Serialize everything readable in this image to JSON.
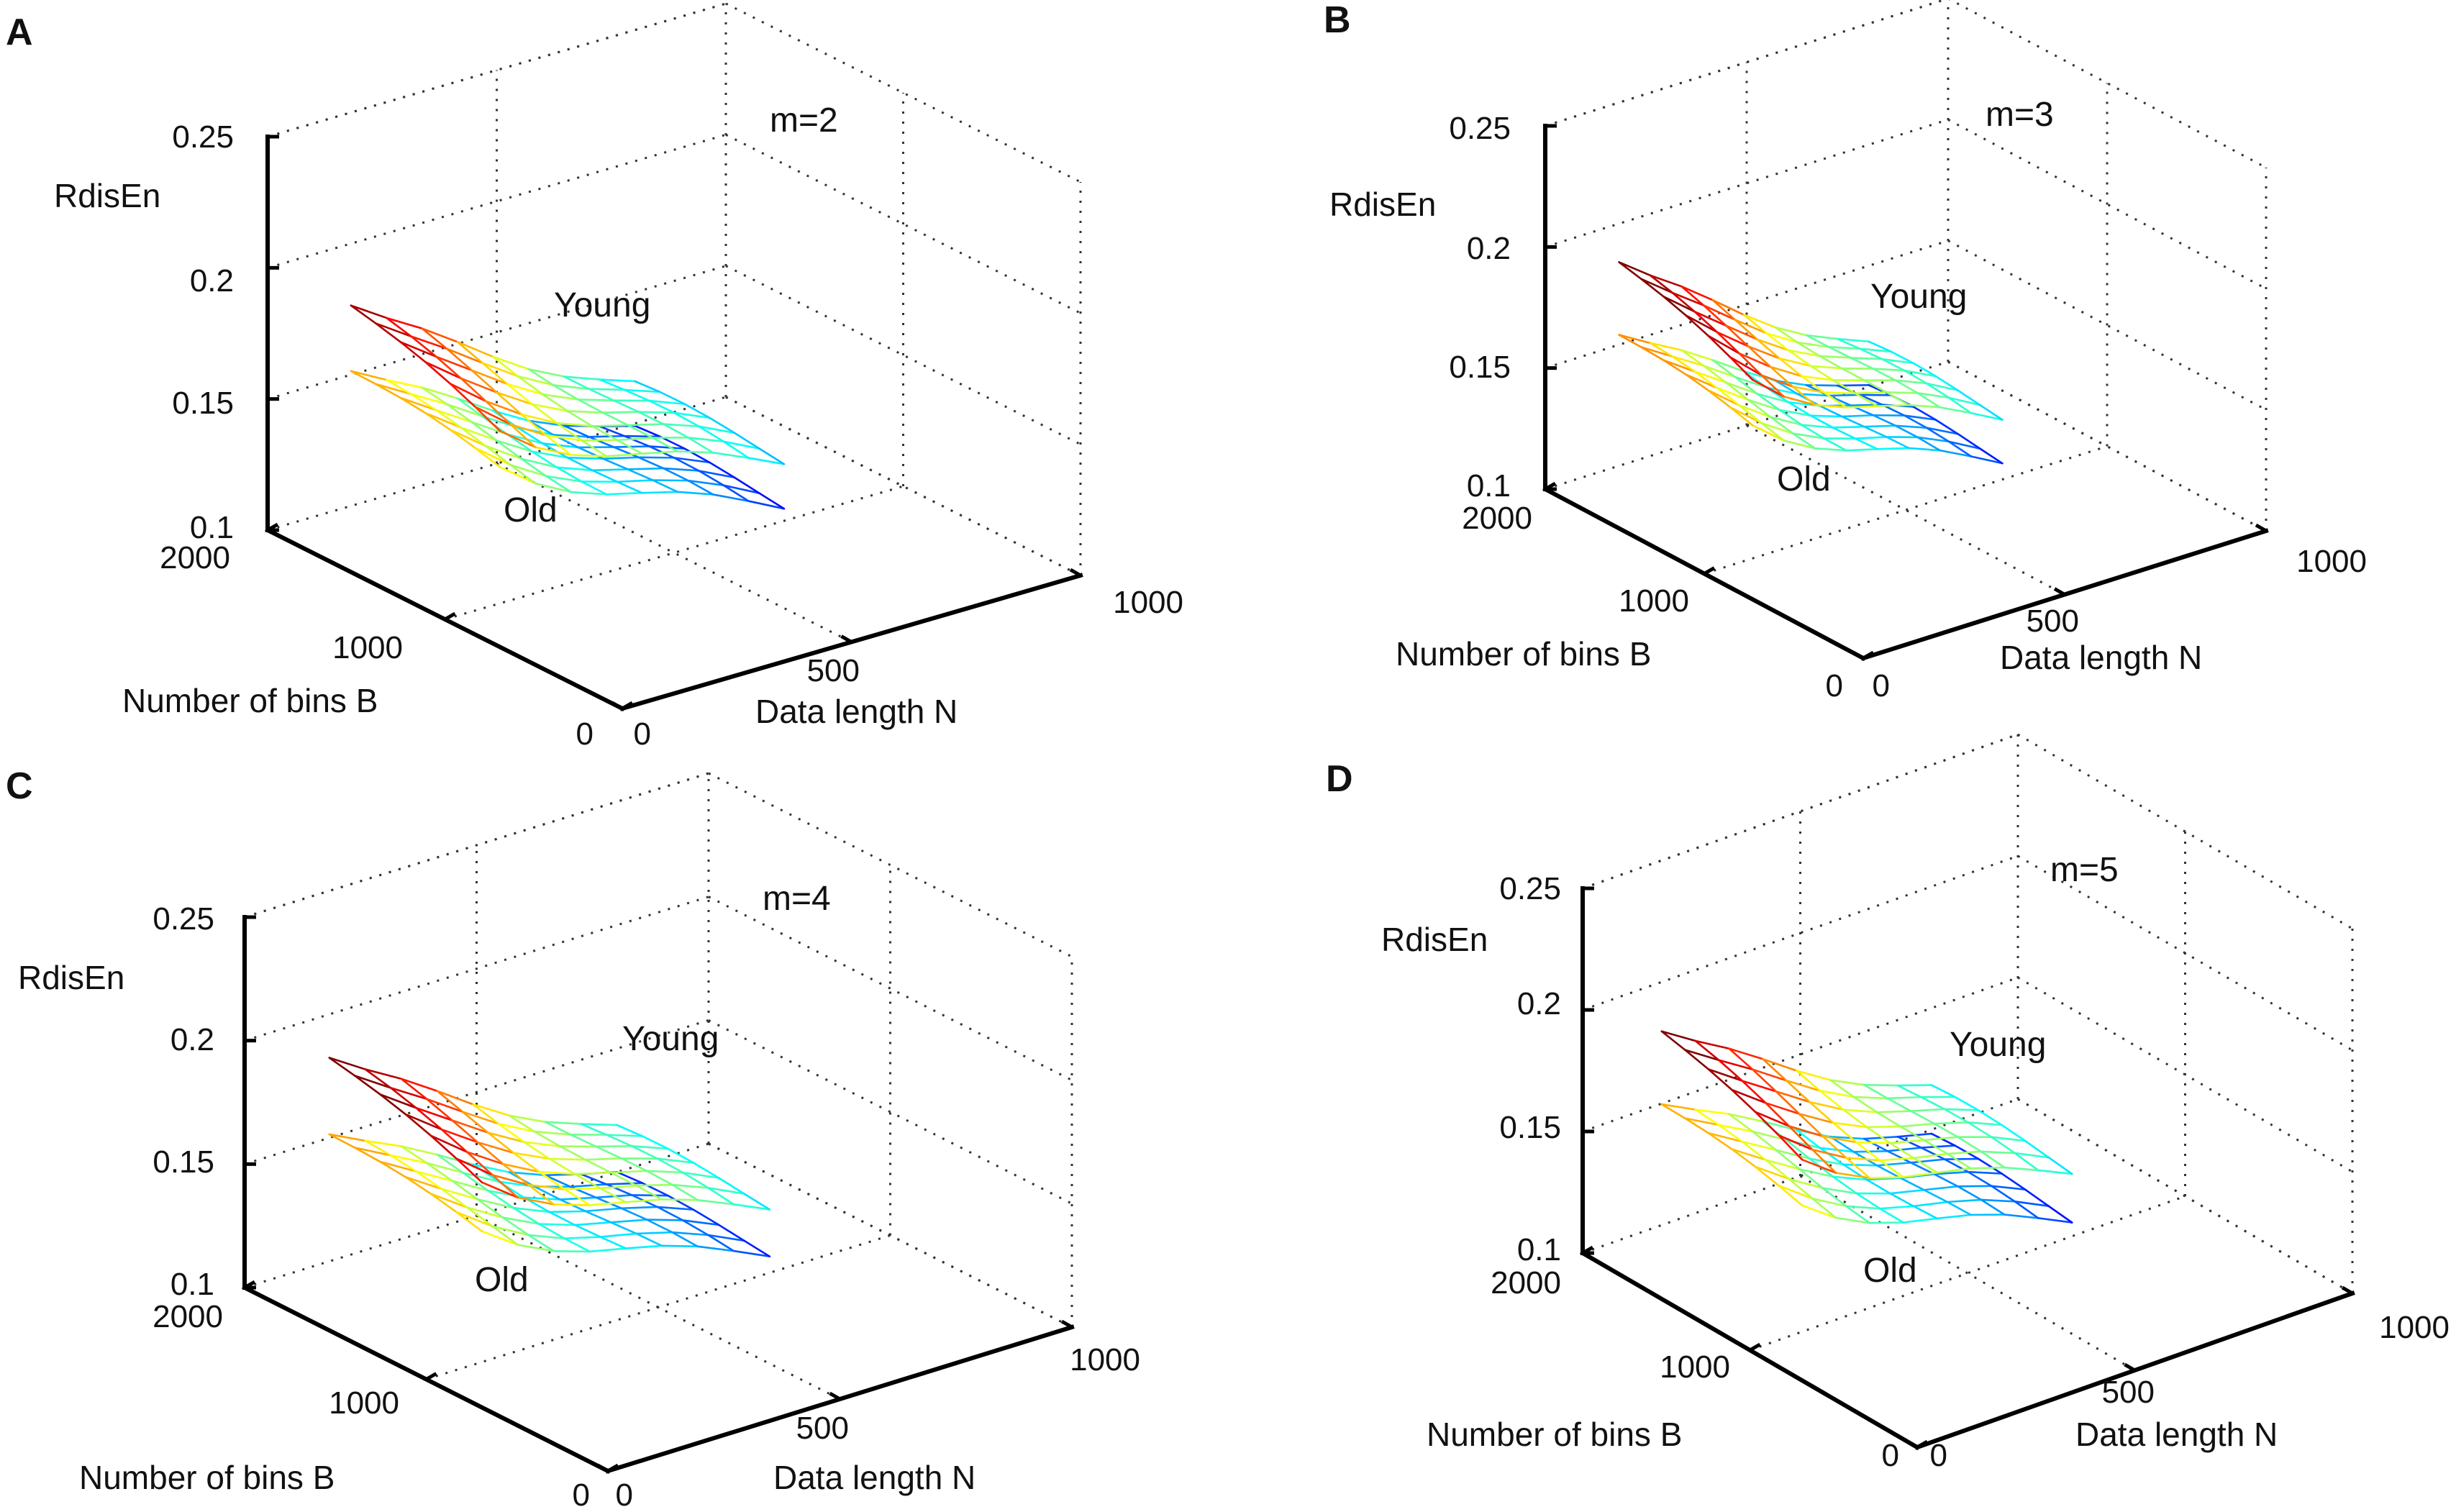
{
  "chart_data": [
    {
      "type": "surface",
      "panel": "A",
      "annotation": "m=2",
      "zlabel": "RdisEn",
      "xlabel": "Data length N",
      "ylabel": "Number of bins B",
      "zlim": [
        0.1,
        0.25
      ],
      "zticks": [
        "0.1",
        "0.15",
        "0.2",
        "0.25"
      ],
      "xticks": [
        "0",
        "500",
        "1000"
      ],
      "yticks": [
        "0",
        "1000",
        "2000"
      ],
      "series_labels": [
        "Young",
        "Old"
      ],
      "young_start": 0.185,
      "young_end": 0.123,
      "old_start": 0.16,
      "old_end": 0.106
    },
    {
      "type": "surface",
      "panel": "B",
      "annotation": "m=3",
      "zlabel": "RdisEn",
      "xlabel": "Data length N",
      "ylabel": "Number of bins B",
      "zlim": [
        0.1,
        0.25
      ],
      "zticks": [
        "0.1",
        "0.15",
        "0.2",
        "0.25"
      ],
      "xticks": [
        "0",
        "500",
        "1000"
      ],
      "yticks": [
        "0",
        "1000",
        "2000"
      ],
      "series_labels": [
        "Young",
        "Old"
      ],
      "young_start": 0.193,
      "young_end": 0.126,
      "old_start": 0.163,
      "old_end": 0.108
    },
    {
      "type": "surface",
      "panel": "C",
      "annotation": "m=4",
      "zlabel": "RdisEn",
      "xlabel": "Data length N",
      "ylabel": "Number of bins B",
      "zlim": [
        0.1,
        0.25
      ],
      "zticks": [
        "0.1",
        "0.15",
        "0.2",
        "0.25"
      ],
      "xticks": [
        "0",
        "500",
        "1000"
      ],
      "yticks": [
        "0",
        "1000",
        "2000"
      ],
      "series_labels": [
        "Young",
        "Old"
      ],
      "young_start": 0.192,
      "young_end": 0.127,
      "old_start": 0.161,
      "old_end": 0.108
    },
    {
      "type": "surface",
      "panel": "D",
      "annotation": "m=5",
      "zlabel": "RdisEn",
      "xlabel": "Data length N",
      "ylabel": "Number of bins B",
      "zlim": [
        0.1,
        0.25
      ],
      "zticks": [
        "0.1",
        "0.15",
        "0.2",
        "0.25"
      ],
      "xticks": [
        "0",
        "500",
        "1000"
      ],
      "yticks": [
        "0",
        "1000",
        "2000"
      ],
      "series_labels": [
        "Young",
        "Old"
      ],
      "young_start": 0.19,
      "young_end": 0.127,
      "old_start": 0.16,
      "old_end": 0.107
    }
  ]
}
